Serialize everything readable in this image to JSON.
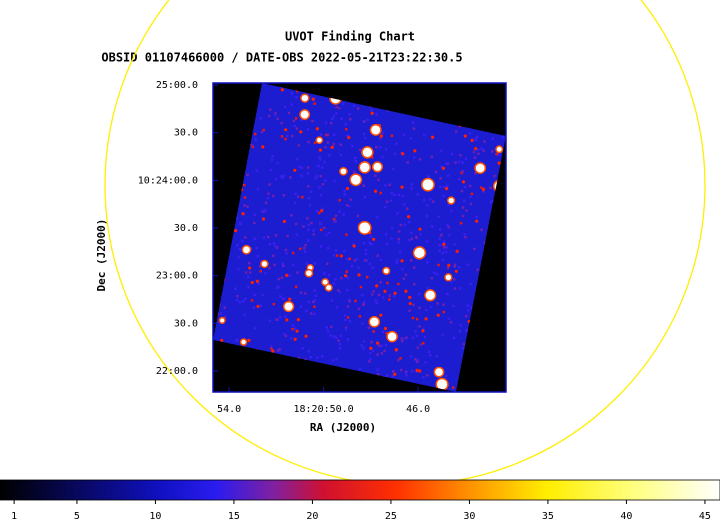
{
  "chart_data": {
    "type": "image",
    "title": "UVOT Finding Chart",
    "subtitle": "OBSID 01107466000 / DATE-OBS 2022-05-21T23:22:30.5",
    "xlabel": "RA (J2000)",
    "ylabel": "Dec (J2000)",
    "xlim": [
      275.22784,
      275.17617
    ],
    "xticks": [
      {
        "value": 275.225,
        "label": "54.0"
      },
      {
        "value": 275.208333,
        "label": "18:20:50.0"
      },
      {
        "value": 275.191667,
        "label": "46.0"
      }
    ],
    "ylim": [
      10.363,
      10.41702
    ],
    "yticks": [
      {
        "value": 10.416667,
        "label": "25:00.0"
      },
      {
        "value": 10.408333,
        "label": "30.0"
      },
      {
        "value": 10.4,
        "label": "10:24:00.0"
      },
      {
        "value": 10.391667,
        "label": "30.0"
      },
      {
        "value": 10.383333,
        "label": "23:00.0"
      },
      {
        "value": 10.375,
        "label": "30.0"
      },
      {
        "value": 10.366667,
        "label": "22:00.0"
      }
    ],
    "colorbar": {
      "lim": [
        0.1,
        45.96
      ],
      "ticks": [
        1,
        5,
        10,
        15,
        20,
        25,
        30,
        35,
        40,
        45
      ]
    }
  }
}
